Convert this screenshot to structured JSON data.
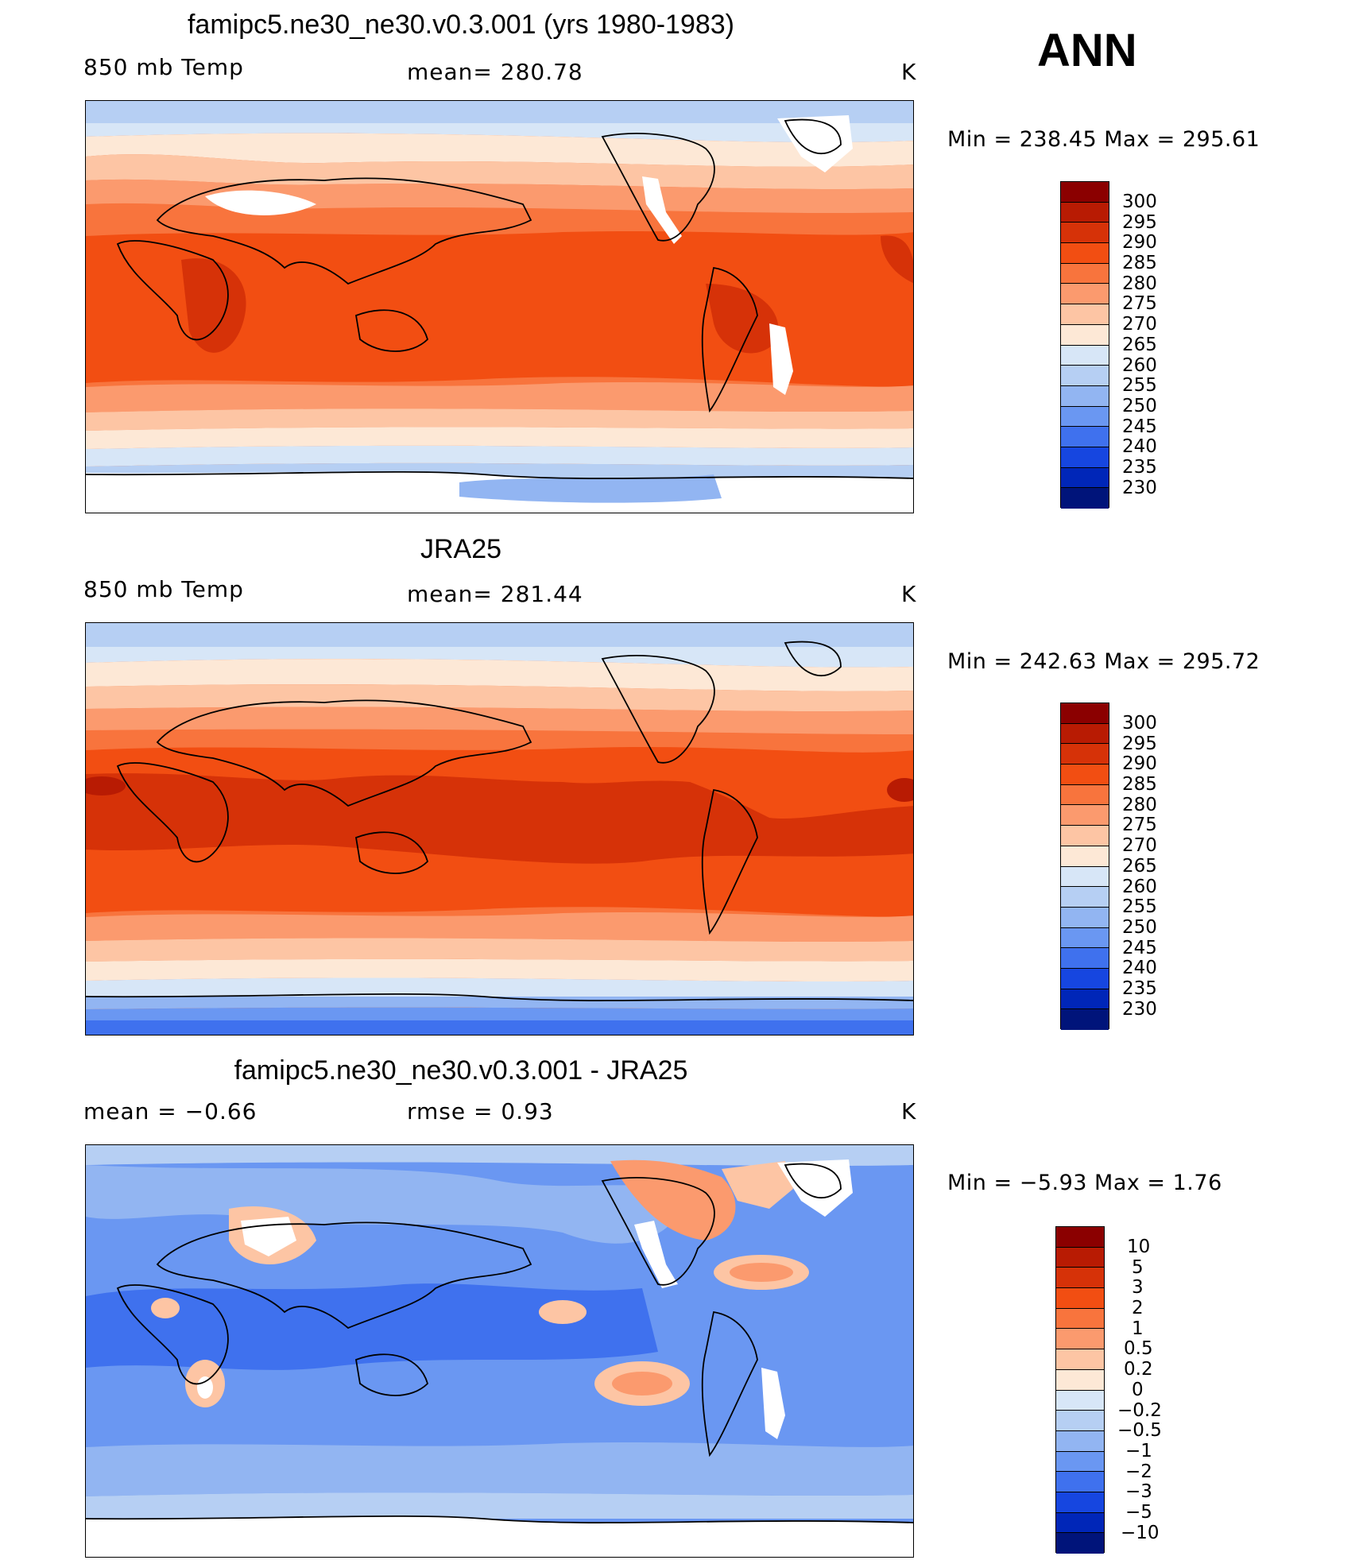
{
  "season": "ANN",
  "panels": [
    {
      "title": "famipc5.ne30_ne30.v0.3.001 (yrs 1980-1983)",
      "left_label": "850  mb  Temp",
      "center_label": "mean=  280.78",
      "units": "K",
      "min_max": "Min  =  238.45  Max  =  295.61"
    },
    {
      "title": "JRA25",
      "left_label": "850  mb  Temp",
      "center_label": "mean=  281.44",
      "units": "K",
      "min_max": "Min  =  242.63  Max  =  295.72"
    },
    {
      "title": "famipc5.ne30_ne30.v0.3.001 - JRA25",
      "left_label": "mean  =    −0.66",
      "center_label": "rmse  =     0.93",
      "units": "K",
      "min_max": "Min  =   −5.93  Max  =     1.76"
    }
  ],
  "chart_data": {
    "type": "heatmap",
    "variable": "850 mb Temp",
    "units": "K",
    "abs_colorbar": {
      "levels": [
        "300",
        "295",
        "290",
        "285",
        "280",
        "275",
        "270",
        "265",
        "260",
        "255",
        "250",
        "245",
        "240",
        "235",
        "230"
      ],
      "colors": [
        "#8b0000",
        "#b81b03",
        "#d63208",
        "#f24e12",
        "#f8743d",
        "#fb9a6e",
        "#fdc5a4",
        "#fde8d6",
        "#d7e6f7",
        "#b6cff3",
        "#92b5f2",
        "#6a97f2",
        "#3f71ee",
        "#1646e0",
        "#0026b8",
        "#00147a"
      ]
    },
    "diff_colorbar": {
      "levels": [
        "10",
        "5",
        "3",
        "2",
        "1",
        "0.5",
        "0.2",
        "0",
        "−0.2",
        "−0.5",
        "−1",
        "−2",
        "−3",
        "−5",
        "−10"
      ],
      "colors": [
        "#8b0000",
        "#b81b03",
        "#d63208",
        "#f24e12",
        "#f8743d",
        "#fb9a6e",
        "#fdc5a4",
        "#fde8d6",
        "#d7e6f7",
        "#b6cff3",
        "#92b5f2",
        "#6a97f2",
        "#3f71ee",
        "#1646e0",
        "#0026b8",
        "#00147a"
      ]
    }
  }
}
